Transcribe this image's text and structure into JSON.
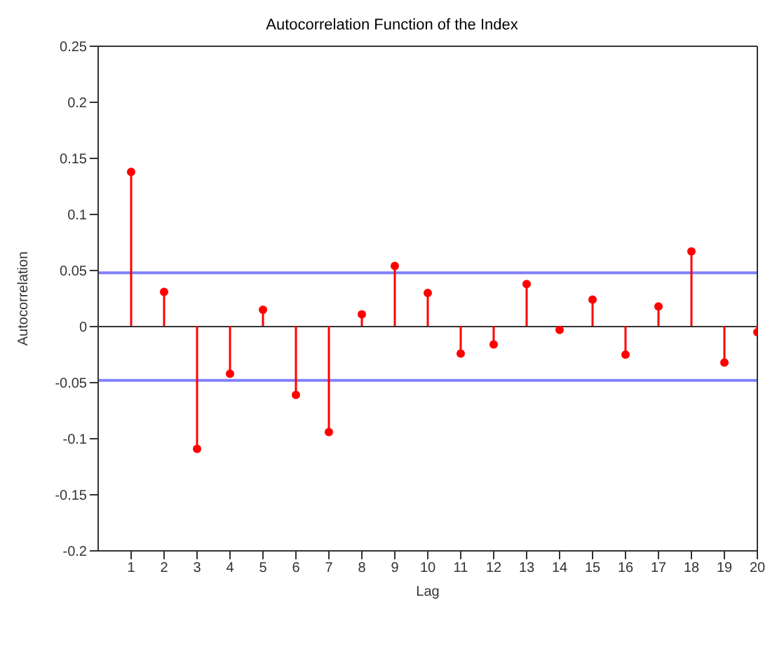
{
  "chart_data": {
    "type": "lollipop",
    "title": "Autocorrelation Function of the Index",
    "xlabel": "Lag",
    "ylabel": "Autocorrelation",
    "x": [
      1,
      2,
      3,
      4,
      5,
      6,
      7,
      8,
      9,
      10,
      11,
      12,
      13,
      14,
      15,
      16,
      17,
      18,
      19,
      20
    ],
    "values": [
      0.138,
      0.031,
      -0.109,
      -0.042,
      0.015,
      -0.061,
      -0.094,
      0.011,
      0.054,
      0.03,
      -0.024,
      -0.016,
      0.038,
      -0.003,
      0.024,
      -0.025,
      0.018,
      0.067,
      -0.032,
      -0.005
    ],
    "color": "#ff0000",
    "marker": "circle",
    "xlim": [
      0,
      20
    ],
    "xticks": [
      1,
      2,
      3,
      4,
      5,
      6,
      7,
      8,
      9,
      10,
      11,
      12,
      13,
      14,
      15,
      16,
      17,
      18,
      19,
      20
    ],
    "ylim": [
      -0.2,
      0.25
    ],
    "yticks": [
      -0.2,
      -0.15,
      -0.1,
      -0.05,
      0,
      0.05,
      0.1,
      0.15,
      0.2,
      0.25
    ],
    "ref_lines": [
      {
        "axis": "y",
        "value": 0.048,
        "color": "#8080ff"
      },
      {
        "axis": "y",
        "value": -0.048,
        "color": "#8080ff"
      }
    ],
    "line_style": "solid"
  }
}
